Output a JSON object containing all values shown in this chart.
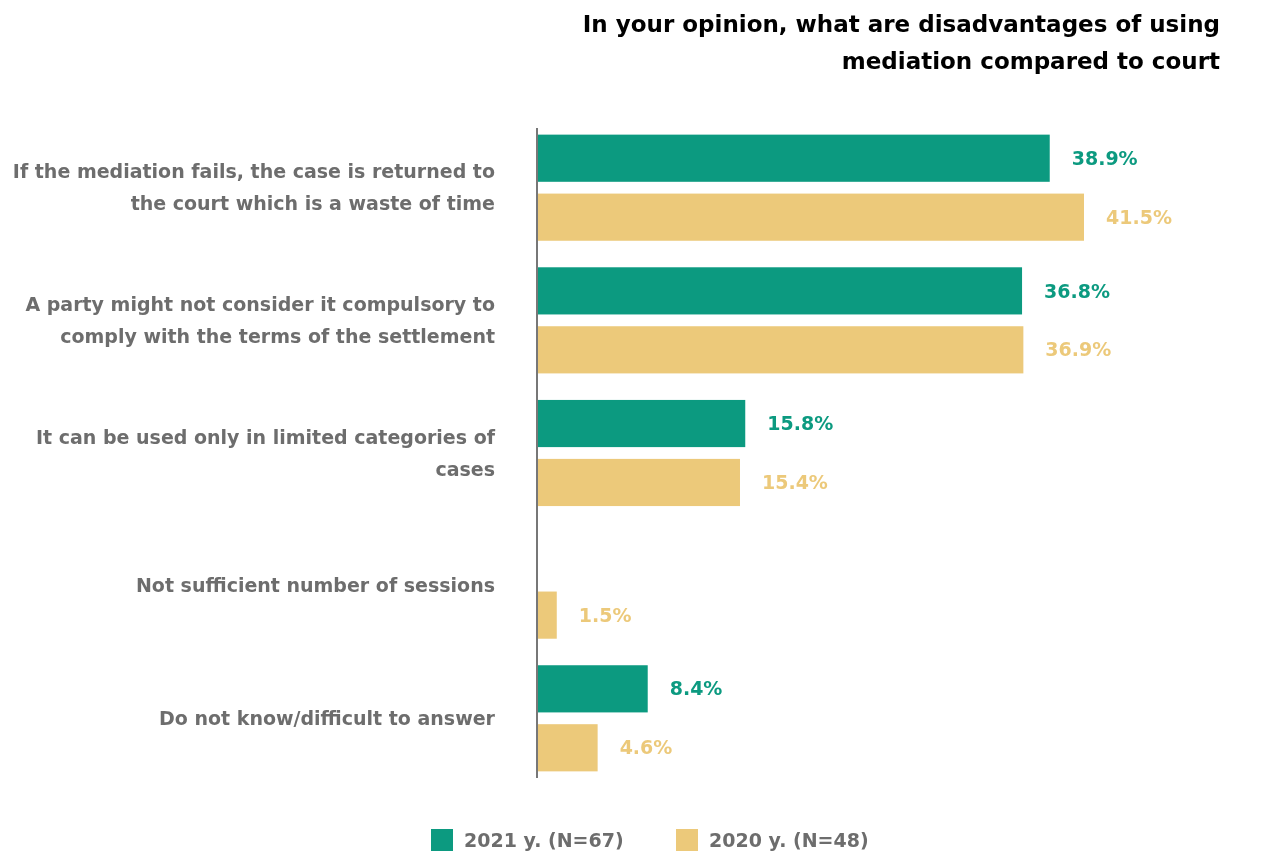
{
  "chart_data": {
    "type": "bar",
    "orientation": "horizontal",
    "title": "In your opinion, what are disadvantages of using mediation compared to court",
    "categories": [
      "If the mediation fails, the case is returned to the court which is a waste of time",
      "A party might not consider it compulsory to comply with the terms of the settlement",
      "It can be used only in limited categories of cases",
      "Not sufficient number of sessions",
      "Do not know/difficult to answer"
    ],
    "series": [
      {
        "name": "2021 y. (N=67)",
        "color": "#0c9a80",
        "values": [
          38.9,
          36.8,
          15.8,
          null,
          8.4
        ],
        "value_labels": [
          "38.9%",
          "36.8%",
          "15.8%",
          null,
          "8.4%"
        ]
      },
      {
        "name": "2020 y. (N=48)",
        "color": "#ecc97a",
        "values": [
          41.5,
          36.9,
          15.4,
          1.5,
          4.6
        ],
        "value_labels": [
          "41.5%",
          "36.9%",
          "15.4%",
          "1.5%",
          "4.6%"
        ]
      }
    ],
    "legend": "bottom"
  }
}
